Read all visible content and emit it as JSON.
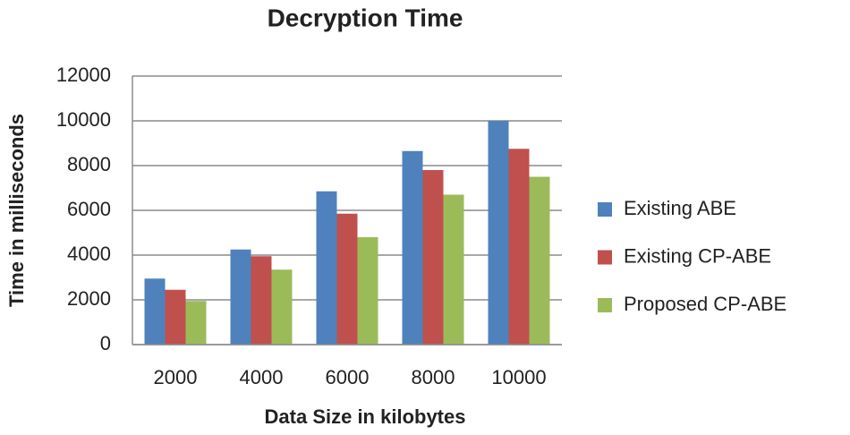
{
  "chart_data": {
    "type": "bar",
    "title": "Decryption Time",
    "x_label": "Data Size in kilobytes",
    "y_label": "Time in milliseconds",
    "categories": [
      "2000",
      "4000",
      "6000",
      "8000",
      "10000"
    ],
    "series": [
      {
        "name": "Existing ABE",
        "color": "#4f81bd",
        "values": [
          2950,
          4250,
          6850,
          8650,
          10000
        ]
      },
      {
        "name": "Existing CP-ABE",
        "color": "#c0504d",
        "values": [
          2450,
          3950,
          5850,
          7800,
          8750
        ]
      },
      {
        "name": "Proposed CP-ABE",
        "color": "#9bbb59",
        "values": [
          1950,
          3350,
          4800,
          6700,
          7500
        ]
      }
    ],
    "ylim": [
      0,
      12000
    ],
    "yticks": [
      0,
      2000,
      4000,
      6000,
      8000,
      10000,
      12000
    ],
    "grid": true,
    "legend": "right"
  }
}
